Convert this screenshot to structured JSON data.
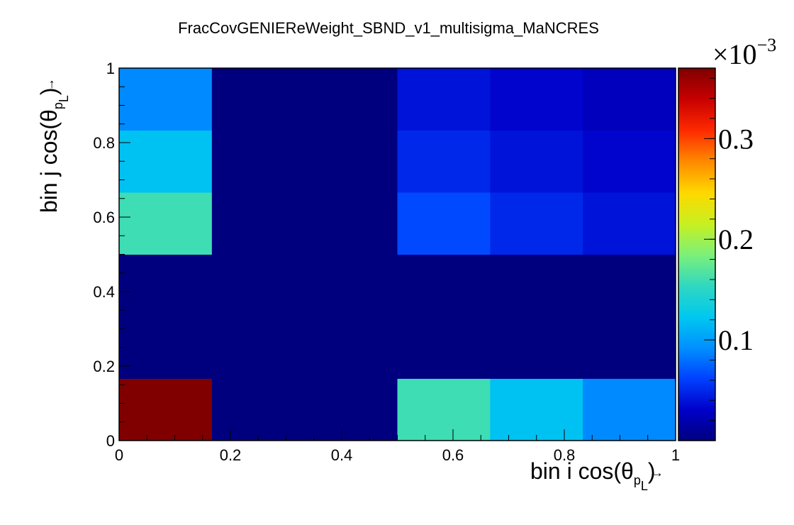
{
  "chart_data": {
    "type": "heatmap",
    "title": "FracCovGENIEReWeight_SBND_v1_multisigma_MaNCRES",
    "xlabel": "bin i cos(θ",
    "xlabel_sub": "p",
    "xlabel_subsub": "L",
    "xlabel_close": ")",
    "ylabel": "bin j cos(θ",
    "ylabel_sub": "p",
    "ylabel_subsub": "L",
    "ylabel_close": ")",
    "xlim": [
      0,
      1
    ],
    "ylim": [
      0,
      1
    ],
    "x_edges": [
      0,
      0.1667,
      0.3333,
      0.5,
      0.6667,
      0.8333,
      1
    ],
    "y_edges": [
      0,
      0.1667,
      0.3333,
      0.5,
      0.6667,
      0.8333,
      1
    ],
    "x_tick_labels": [
      "0",
      "0.2",
      "0.4",
      "0.6",
      "0.8",
      "1"
    ],
    "x_tick_values": [
      0,
      0.2,
      0.4,
      0.6,
      0.8,
      1
    ],
    "y_tick_labels": [
      "0",
      "0.2",
      "0.4",
      "0.6",
      "0.8",
      "1"
    ],
    "y_tick_values": [
      0,
      0.2,
      0.4,
      0.6,
      0.8,
      1
    ],
    "z_multiplier": "×10",
    "z_exponent": "−3",
    "z_range": [
      0.0,
      0.37
    ],
    "z_tick_labels": [
      "0.1",
      "0.2",
      "0.3"
    ],
    "z_tick_values": [
      0.1,
      0.2,
      0.3
    ],
    "values": [
      [
        0.37,
        0.0,
        0.0,
        0.16,
        0.12,
        0.09
      ],
      [
        0.0,
        0.0,
        0.0,
        0.0,
        0.0,
        0.0
      ],
      [
        0.0,
        0.0,
        0.0,
        0.0,
        0.0,
        0.0
      ],
      [
        0.16,
        0.0,
        0.0,
        0.065,
        0.05,
        0.04
      ],
      [
        0.12,
        0.0,
        0.0,
        0.05,
        0.04,
        0.033
      ],
      [
        0.09,
        0.0,
        0.0,
        0.04,
        0.033,
        0.026
      ]
    ],
    "palette": [
      "#00007f",
      "#0000c8",
      "#0040ff",
      "#0090ff",
      "#00c8f0",
      "#30d8c0",
      "#7cf07a",
      "#c8f020",
      "#ffd800",
      "#ff8a00",
      "#ff2a00",
      "#c80000",
      "#800000"
    ],
    "grid": false
  }
}
